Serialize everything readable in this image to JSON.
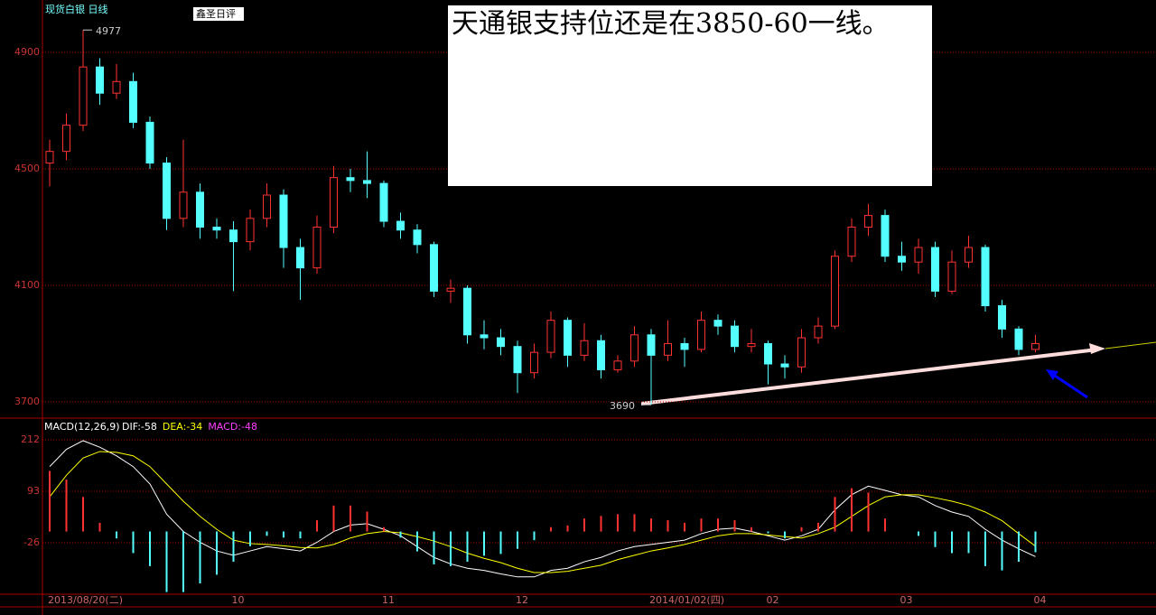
{
  "chart_data": [
    {
      "type": "candlestick",
      "title": "现货白银 日线",
      "tag": "鑫圣日评",
      "annotation": "天通银支持位还是在3850-60一线。",
      "categories": [
        "2013/08/20(二)",
        null,
        null,
        null,
        null,
        null,
        null,
        null,
        null,
        null,
        null,
        "10",
        null,
        null,
        null,
        null,
        null,
        null,
        null,
        null,
        "11",
        null,
        null,
        null,
        null,
        null,
        null,
        null,
        "12",
        null,
        null,
        null,
        null,
        null,
        null,
        null,
        "2014/01/02(四)",
        null,
        null,
        null,
        null,
        null,
        null,
        "02",
        null,
        null,
        null,
        null,
        null,
        null,
        null,
        "03",
        null,
        null,
        null,
        null,
        null,
        null,
        null,
        "04"
      ],
      "open": [
        4520,
        4560,
        4650,
        4850,
        4760,
        4800,
        4660,
        4520,
        4330,
        4420,
        4300,
        4290,
        4250,
        4330,
        4410,
        4230,
        4160,
        4300,
        4470,
        4460,
        4450,
        4320,
        4290,
        4240,
        4080,
        4090,
        3930,
        3920,
        3890,
        3800,
        3870,
        3980,
        3860,
        3910,
        3810,
        3840,
        3930,
        3860,
        3900,
        3880,
        3980,
        3960,
        3890,
        3900,
        3830,
        3820,
        3920,
        3960,
        4200,
        4300,
        4340,
        4200,
        4180,
        4230,
        4080,
        4180,
        4230,
        4030,
        3950,
        3880
      ],
      "high": [
        4600,
        4690,
        4977,
        4880,
        4860,
        4830,
        4680,
        4540,
        4600,
        4450,
        4330,
        4320,
        4360,
        4450,
        4430,
        4260,
        4340,
        4510,
        4500,
        4560,
        4460,
        4350,
        4310,
        4250,
        4120,
        4100,
        3980,
        3950,
        3910,
        3900,
        4010,
        3990,
        3970,
        3930,
        3860,
        3960,
        3950,
        3980,
        3920,
        4010,
        4000,
        3980,
        3950,
        3910,
        3860,
        3950,
        3990,
        4220,
        4330,
        4380,
        4360,
        4250,
        4260,
        4250,
        4220,
        4270,
        4240,
        4050,
        3960,
        3930
      ],
      "low": [
        4440,
        4530,
        4630,
        4720,
        4740,
        4640,
        4500,
        4290,
        4300,
        4260,
        4260,
        4080,
        4220,
        4300,
        4160,
        4050,
        4140,
        4280,
        4420,
        4400,
        4300,
        4260,
        4210,
        4060,
        4040,
        3900,
        3880,
        3860,
        3730,
        3780,
        3850,
        3820,
        3840,
        3780,
        3800,
        3820,
        3690,
        3840,
        3820,
        3870,
        3930,
        3870,
        3870,
        3760,
        3780,
        3800,
        3900,
        3950,
        4180,
        4270,
        4180,
        4150,
        4140,
        4060,
        4070,
        4160,
        4010,
        3920,
        3860,
        3870
      ],
      "close": [
        4560,
        4650,
        4850,
        4760,
        4800,
        4660,
        4520,
        4330,
        4420,
        4300,
        4290,
        4250,
        4330,
        4410,
        4230,
        4160,
        4300,
        4470,
        4460,
        4450,
        4320,
        4290,
        4240,
        4080,
        4090,
        3930,
        3920,
        3890,
        3800,
        3870,
        3980,
        3860,
        3910,
        3810,
        3840,
        3930,
        3860,
        3900,
        3880,
        3980,
        3960,
        3890,
        3900,
        3830,
        3820,
        3920,
        3960,
        4200,
        4300,
        4340,
        4200,
        4180,
        4230,
        4080,
        4180,
        4230,
        4030,
        3950,
        3880,
        3900
      ],
      "high_label": {
        "index": 2,
        "value": 4977
      },
      "low_label": {
        "index": 36,
        "value": 3690
      },
      "up_color": "#ff3232",
      "down_color": "#54ffff",
      "ylim": [
        3644,
        5080
      ],
      "yticks": [
        4900,
        4500,
        4100,
        3700
      ],
      "grid": true
    },
    {
      "type": "macd",
      "label": "MACD(12,26,9)",
      "ylim": [
        -143,
        258
      ],
      "yticks": [
        212,
        93,
        -26
      ],
      "grid": true,
      "series": [
        {
          "name": "DIF:-58",
          "color": "#ffffff",
          "values": [
            150,
            190,
            210,
            195,
            175,
            150,
            110,
            40,
            0,
            -25,
            -45,
            -55,
            -45,
            -35,
            -40,
            -45,
            -25,
            0,
            15,
            18,
            5,
            -10,
            -35,
            -60,
            -75,
            -85,
            -90,
            -98,
            -105,
            -105,
            -90,
            -85,
            -70,
            -60,
            -45,
            -35,
            -30,
            -25,
            -20,
            -5,
            5,
            8,
            0,
            -10,
            -20,
            -10,
            5,
            50,
            85,
            105,
            95,
            85,
            80,
            60,
            45,
            35,
            5,
            -20,
            -40,
            -58
          ]
        },
        {
          "name": "DEA:-34",
          "color": "#ffff00",
          "values": [
            80,
            130,
            170,
            185,
            183,
            175,
            150,
            110,
            70,
            35,
            5,
            -20,
            -28,
            -30,
            -33,
            -37,
            -38,
            -30,
            -15,
            -5,
            0,
            -3,
            -12,
            -22,
            -35,
            -50,
            -62,
            -72,
            -85,
            -95,
            -95,
            -92,
            -85,
            -78,
            -65,
            -55,
            -45,
            -38,
            -30,
            -20,
            -10,
            -5,
            -5,
            -8,
            -12,
            -15,
            -5,
            10,
            35,
            60,
            80,
            85,
            85,
            78,
            70,
            60,
            45,
            25,
            -5,
            -34
          ]
        },
        {
          "name": "MACD:-48",
          "color": "#ff40ff",
          "up_color": "#ff3232",
          "down_color": "#54ffff",
          "bars": true,
          "values": [
            140,
            120,
            80,
            20,
            -16,
            -50,
            -80,
            -140,
            -140,
            -120,
            -100,
            -70,
            -34,
            -10,
            -14,
            -16,
            26,
            60,
            60,
            46,
            10,
            -14,
            -46,
            -76,
            -80,
            -70,
            -56,
            -52,
            -40,
            -20,
            10,
            14,
            30,
            36,
            40,
            40,
            30,
            26,
            20,
            30,
            30,
            26,
            10,
            -4,
            -16,
            10,
            20,
            80,
            100,
            90,
            30,
            0,
            -10,
            -36,
            -50,
            -50,
            -80,
            -90,
            -70,
            -48
          ]
        }
      ]
    }
  ]
}
